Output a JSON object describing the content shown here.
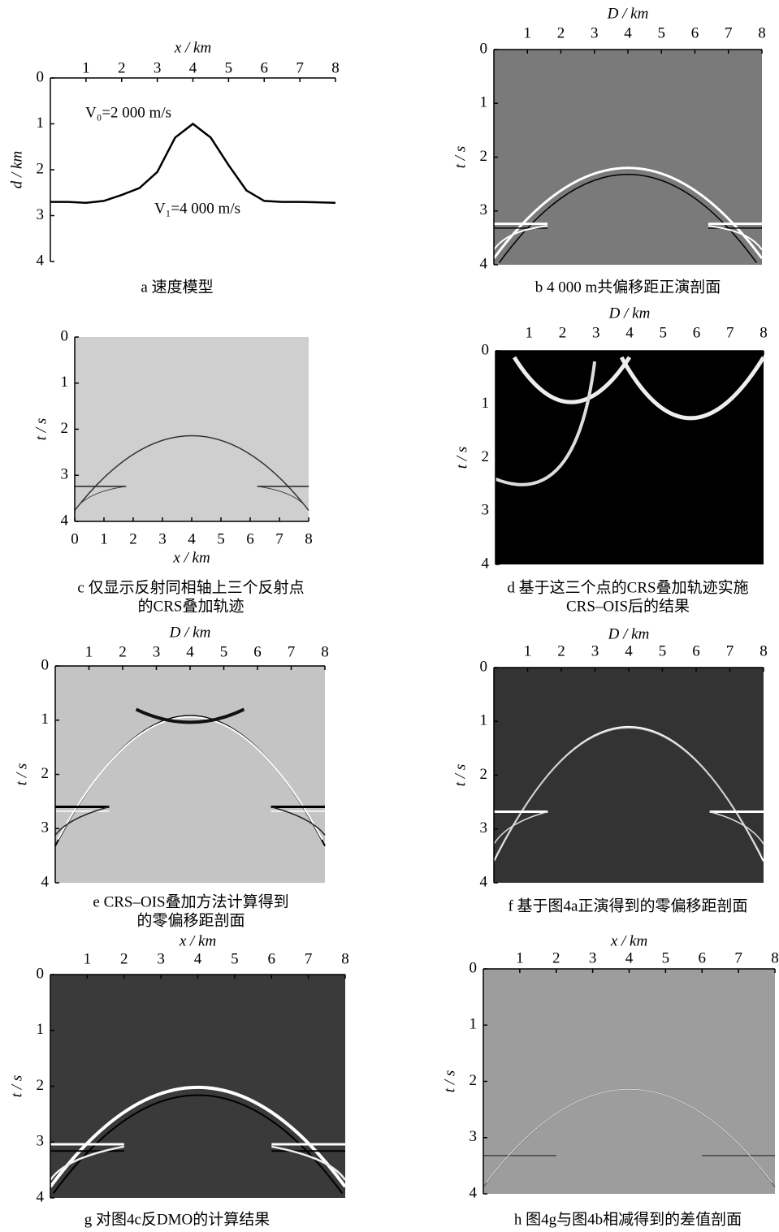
{
  "chart_data": [
    {
      "type": "line",
      "xlabel": "x / km",
      "ylabel": "d / km",
      "xaxis": "top",
      "x": [
        0,
        0.5,
        1,
        1.5,
        2,
        2.5,
        3,
        3.5,
        4,
        4.5,
        5,
        5.5,
        6,
        6.5,
        7,
        7.5,
        8
      ],
      "values": [
        2.7,
        2.7,
        2.72,
        2.68,
        2.55,
        2.4,
        2.05,
        1.3,
        1.0,
        1.3,
        1.9,
        2.45,
        2.68,
        2.7,
        2.7,
        2.71,
        2.72
      ],
      "color": "#000000",
      "xlim": [
        0,
        8
      ],
      "ylim": [
        4,
        0
      ],
      "xticks": [
        1,
        2,
        3,
        4,
        5,
        6,
        7,
        8
      ],
      "yticks": [
        0,
        1,
        2,
        3,
        4
      ],
      "annotations": [
        "V₀=2 000 m/s",
        "V₁=4 000 m/s"
      ],
      "caption": [
        "a 速度模型"
      ]
    },
    {
      "type": "image",
      "xlabel": "D / km",
      "ylabel": "t / s",
      "xaxis": "top",
      "background": "#7a7a7a",
      "xlim": [
        0,
        8
      ],
      "ylim": [
        4,
        0
      ],
      "xticks": [
        1,
        2,
        3,
        4,
        5,
        6,
        7,
        8
      ],
      "yticks": [
        0,
        1,
        2,
        3,
        4
      ],
      "caption": [
        "b 4 000 m共偏移距正演剖面"
      ]
    },
    {
      "type": "image",
      "xlabel": "x / km",
      "ylabel": "t / s",
      "xaxis": "bottom",
      "background": "#cfcfcf",
      "xlim": [
        0,
        8
      ],
      "ylim": [
        4,
        0
      ],
      "xticks": [
        0,
        1,
        2,
        3,
        4,
        5,
        6,
        7,
        8
      ],
      "yticks": [
        0,
        1,
        2,
        3,
        4
      ],
      "caption": [
        "c 仅显示反射同相轴上三个反射点",
        "的CRS叠加轨迹"
      ]
    },
    {
      "type": "image",
      "xlabel": "D / km",
      "ylabel": "t / s",
      "xaxis": "top",
      "background": "#000000",
      "xlim": [
        0,
        8
      ],
      "ylim": [
        4,
        0
      ],
      "xticks": [
        1,
        2,
        3,
        4,
        5,
        6,
        7,
        8
      ],
      "yticks": [
        0,
        1,
        2,
        3,
        4
      ],
      "caption": [
        "d 基于这三个点的CRS叠加轨迹实施",
        "CRS–OIS后的结果"
      ]
    },
    {
      "type": "image",
      "xlabel": "D / km",
      "ylabel": "t / s",
      "xaxis": "top",
      "background": "#c4c4c4",
      "xlim": [
        0,
        8
      ],
      "ylim": [
        4,
        0
      ],
      "xticks": [
        1,
        2,
        3,
        4,
        5,
        6,
        7,
        8
      ],
      "yticks": [
        0,
        1,
        2,
        3,
        4
      ],
      "caption": [
        "e CRS–OIS叠加方法计算得到",
        "的零偏移距剖面"
      ]
    },
    {
      "type": "image",
      "xlabel": "D / km",
      "ylabel": "t / s",
      "xaxis": "top",
      "background": "#333333",
      "xlim": [
        0,
        8
      ],
      "ylim": [
        4,
        0
      ],
      "xticks": [
        1,
        2,
        3,
        4,
        5,
        6,
        7,
        8
      ],
      "yticks": [
        0,
        1,
        2,
        3,
        4
      ],
      "caption": [
        "f 基于图4a正演得到的零偏移距剖面"
      ]
    },
    {
      "type": "image",
      "xlabel": "x / km",
      "ylabel": "t / s",
      "xaxis": "top",
      "background": "#3a3a3a",
      "xlim": [
        0,
        8
      ],
      "ylim": [
        4,
        0
      ],
      "xticks": [
        1,
        2,
        3,
        4,
        5,
        6,
        7,
        8
      ],
      "yticks": [
        0,
        1,
        2,
        3,
        4
      ],
      "caption": [
        "g 对图4c反DMO的计算结果"
      ]
    },
    {
      "type": "image",
      "xlabel": "x / km",
      "ylabel": "t / s",
      "xaxis": "top",
      "background": "#9d9d9d",
      "xlim": [
        0,
        8
      ],
      "ylim": [
        4,
        0
      ],
      "xticks": [
        1,
        2,
        3,
        4,
        5,
        6,
        7,
        8
      ],
      "yticks": [
        0,
        1,
        2,
        3,
        4
      ],
      "caption": [
        "h 图4g与图4b相减得到的差值剖面"
      ]
    }
  ]
}
